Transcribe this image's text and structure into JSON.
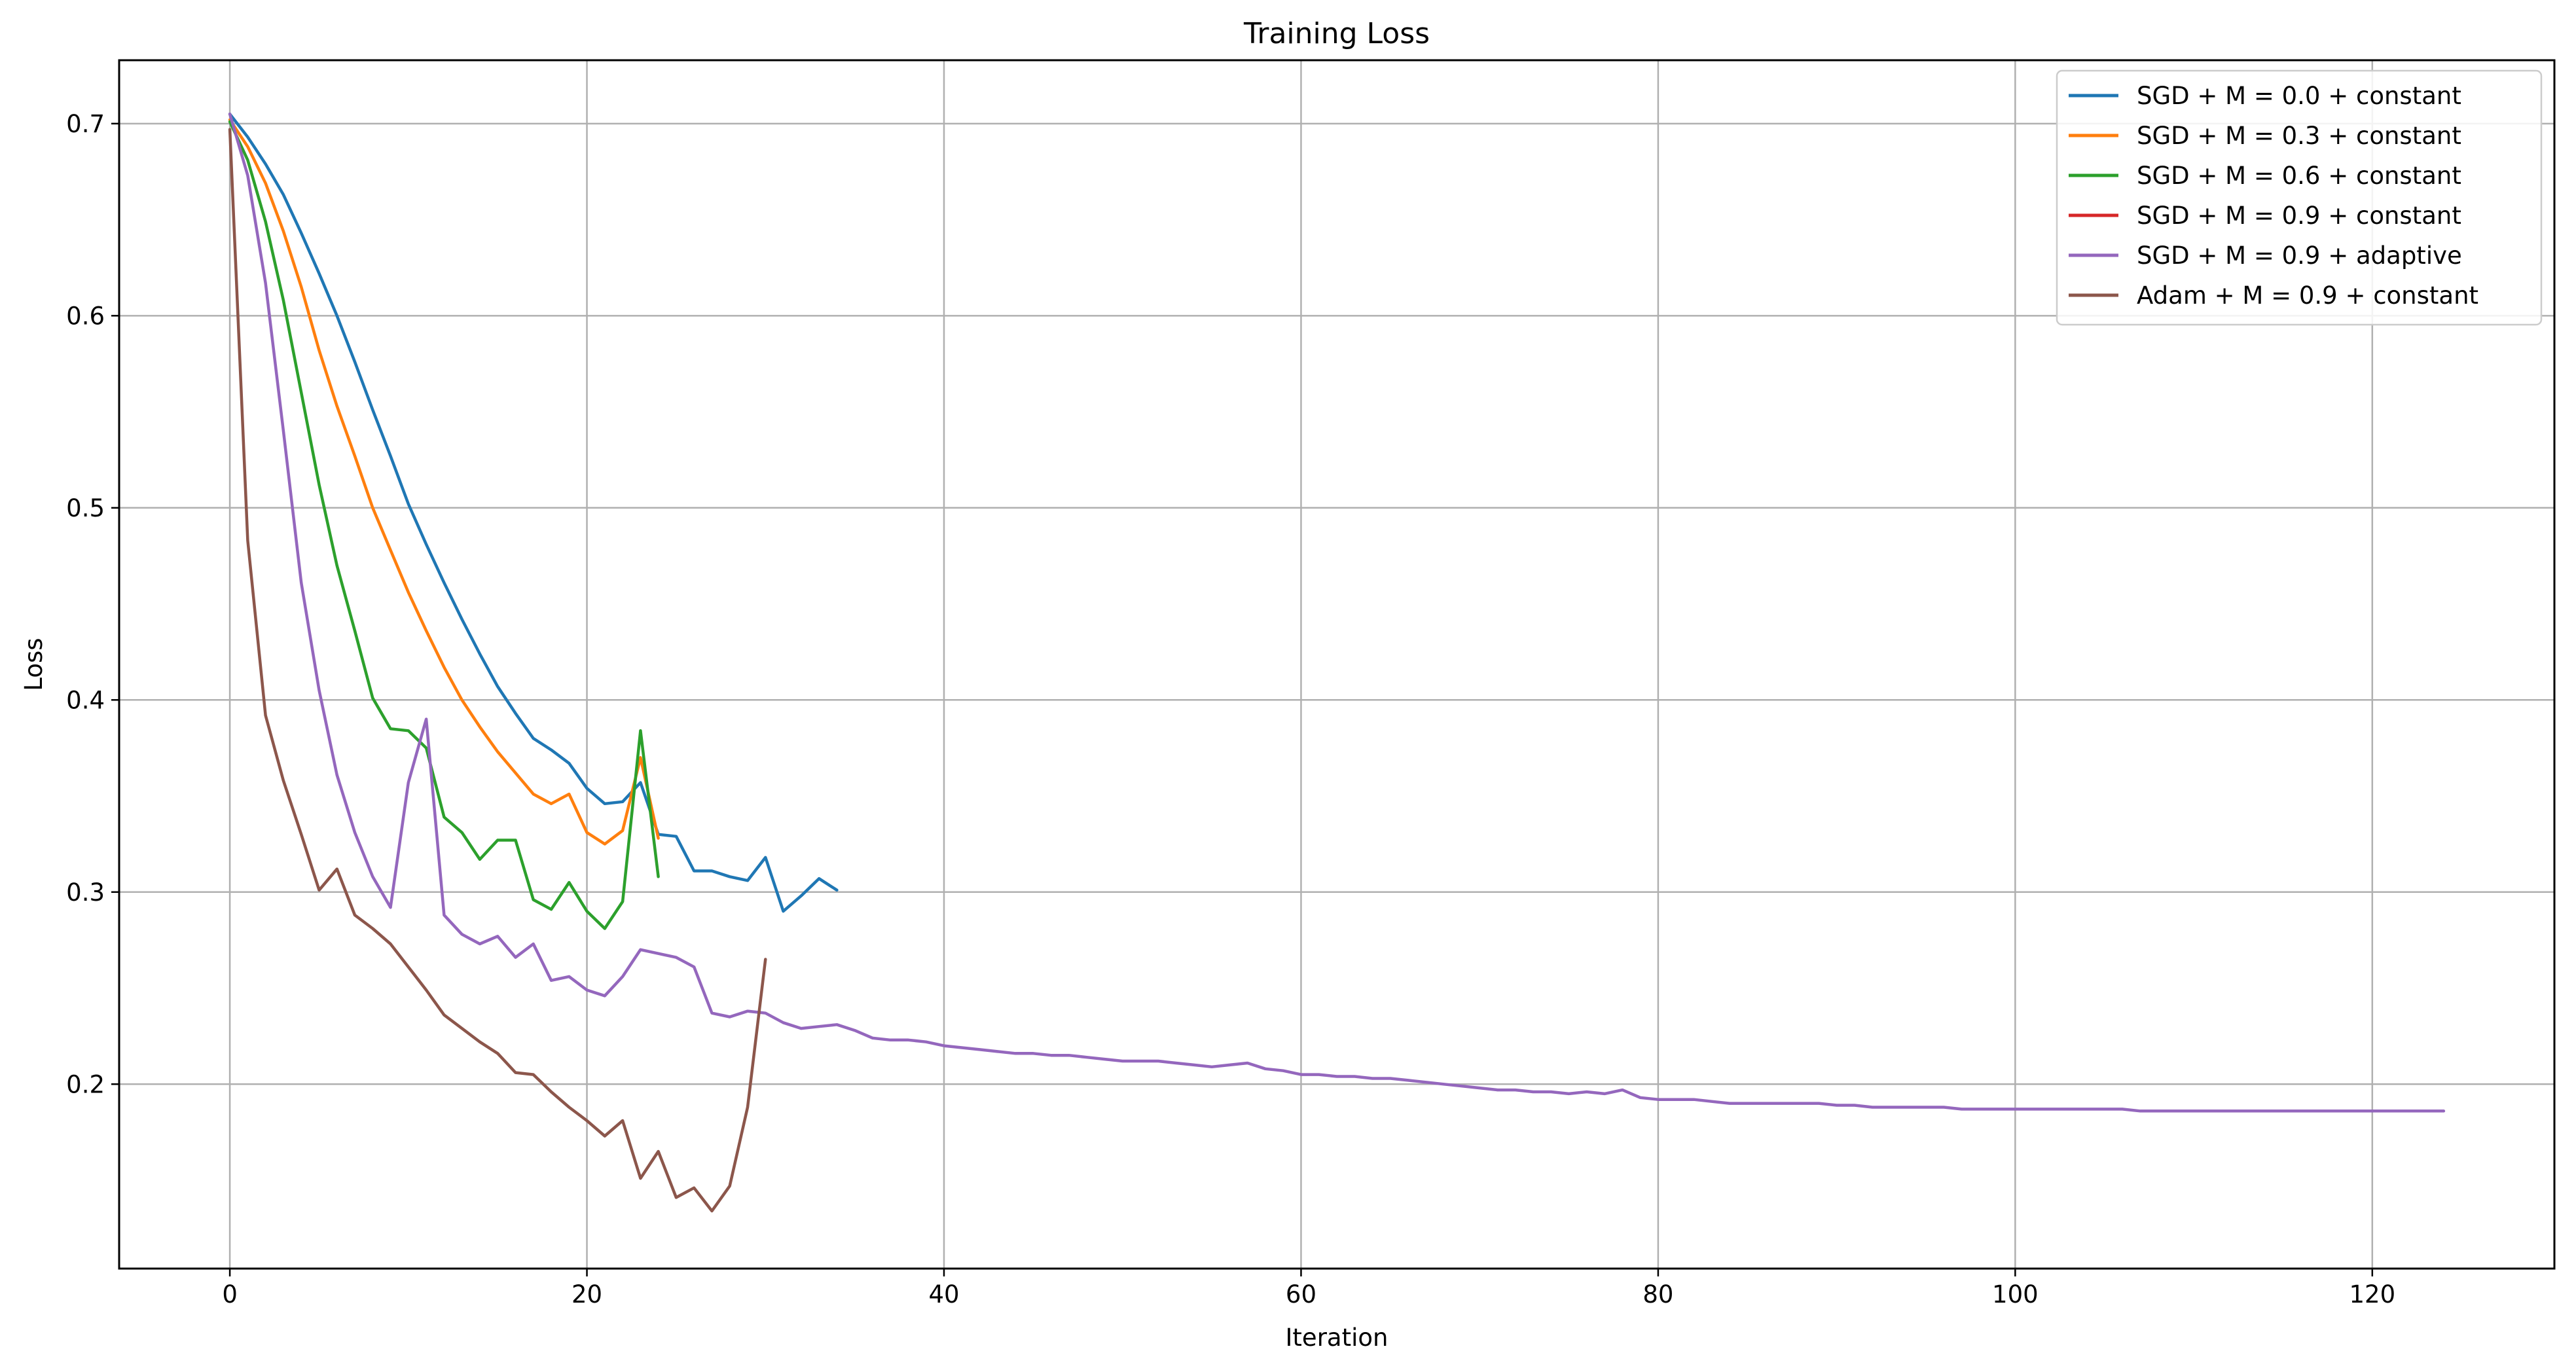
{
  "chart_data": {
    "type": "line",
    "title": "Training Loss",
    "xlabel": "Iteration",
    "ylabel": "Loss",
    "xlim": [
      -6.2,
      130.2
    ],
    "ylim": [
      0.104,
      0.733
    ],
    "xticks": [
      0,
      20,
      40,
      60,
      80,
      100,
      120
    ],
    "yticks": [
      0.2,
      0.3,
      0.4,
      0.5,
      0.6,
      0.7
    ],
    "xtick_labels": [
      "0",
      "20",
      "40",
      "60",
      "80",
      "100",
      "120"
    ],
    "ytick_labels": [
      "0.2",
      "0.3",
      "0.4",
      "0.5",
      "0.6",
      "0.7"
    ],
    "grid": true,
    "legend_position": "top-right",
    "series": [
      {
        "name": "SGD + M = 0.0 + constant",
        "color": "#1f77b4",
        "x": [
          0,
          1,
          2,
          3,
          4,
          5,
          6,
          7,
          8,
          9,
          10,
          11,
          12,
          13,
          14,
          15,
          16,
          17,
          18,
          19,
          20,
          21,
          22,
          23,
          24,
          25,
          26,
          27,
          28,
          29,
          30,
          31,
          32,
          33,
          34
        ],
        "y": [
          0.705,
          0.693,
          0.679,
          0.663,
          0.643,
          0.622,
          0.6,
          0.576,
          0.551,
          0.527,
          0.502,
          0.481,
          0.461,
          0.442,
          0.424,
          0.407,
          0.393,
          0.38,
          0.374,
          0.367,
          0.354,
          0.346,
          0.347,
          0.357,
          0.33,
          0.329,
          0.311,
          0.311,
          0.308,
          0.306,
          0.318,
          0.29,
          0.298,
          0.307,
          0.301
        ]
      },
      {
        "name": "SGD + M = 0.3 + constant",
        "color": "#ff7f0e",
        "x": [
          0,
          1,
          2,
          3,
          4,
          5,
          6,
          7,
          8,
          9,
          10,
          11,
          12,
          13,
          14,
          15,
          16,
          17,
          18,
          19,
          20,
          21,
          22,
          23,
          24
        ],
        "y": [
          0.702,
          0.688,
          0.669,
          0.644,
          0.615,
          0.582,
          0.553,
          0.527,
          0.5,
          0.478,
          0.456,
          0.436,
          0.417,
          0.4,
          0.386,
          0.373,
          0.362,
          0.351,
          0.346,
          0.351,
          0.331,
          0.325,
          0.332,
          0.37,
          0.328
        ]
      },
      {
        "name": "SGD + M = 0.6 + constant",
        "color": "#2ca02c",
        "x": [
          0,
          1,
          2,
          3,
          4,
          5,
          6,
          7,
          8,
          9,
          10,
          11,
          12,
          13,
          14,
          15,
          16,
          17,
          18,
          19,
          20,
          21,
          22,
          23,
          24
        ],
        "y": [
          0.701,
          0.681,
          0.649,
          0.608,
          0.56,
          0.512,
          0.47,
          0.436,
          0.401,
          0.385,
          0.384,
          0.375,
          0.339,
          0.331,
          0.317,
          0.327,
          0.327,
          0.296,
          0.291,
          0.305,
          0.29,
          0.281,
          0.295,
          0.384,
          0.308
        ]
      },
      {
        "name": "SGD + M = 0.9 + constant",
        "color": "#d62728",
        "x": [],
        "y": []
      },
      {
        "name": "SGD + M = 0.9 + adaptive",
        "color": "#9467bd",
        "x": [
          0,
          1,
          2,
          3,
          4,
          5,
          6,
          7,
          8,
          9,
          10,
          11,
          12,
          13,
          14,
          15,
          16,
          17,
          18,
          19,
          20,
          21,
          22,
          23,
          24,
          25,
          26,
          27,
          28,
          29,
          30,
          31,
          32,
          33,
          34,
          35,
          36,
          37,
          38,
          39,
          40,
          41,
          42,
          43,
          44,
          45,
          46,
          47,
          48,
          49,
          50,
          51,
          52,
          53,
          54,
          55,
          56,
          57,
          58,
          59,
          60,
          61,
          62,
          63,
          64,
          65,
          66,
          67,
          68,
          69,
          70,
          71,
          72,
          73,
          74,
          75,
          76,
          77,
          78,
          79,
          80,
          81,
          82,
          83,
          84,
          85,
          86,
          87,
          88,
          89,
          90,
          91,
          92,
          93,
          94,
          95,
          96,
          97,
          98,
          99,
          100,
          101,
          102,
          103,
          104,
          105,
          106,
          107,
          108,
          109,
          110,
          111,
          112,
          113,
          114,
          115,
          116,
          117,
          118,
          119,
          120,
          121,
          122,
          123,
          124
        ],
        "y": [
          0.705,
          0.673,
          0.617,
          0.54,
          0.461,
          0.405,
          0.361,
          0.331,
          0.308,
          0.292,
          0.357,
          0.39,
          0.288,
          0.278,
          0.273,
          0.277,
          0.266,
          0.273,
          0.254,
          0.256,
          0.249,
          0.246,
          0.256,
          0.27,
          0.268,
          0.266,
          0.261,
          0.237,
          0.235,
          0.238,
          0.237,
          0.232,
          0.229,
          0.23,
          0.231,
          0.228,
          0.224,
          0.223,
          0.223,
          0.222,
          0.22,
          0.219,
          0.218,
          0.217,
          0.216,
          0.216,
          0.215,
          0.215,
          0.214,
          0.213,
          0.212,
          0.212,
          0.212,
          0.211,
          0.21,
          0.209,
          0.21,
          0.211,
          0.208,
          0.207,
          0.205,
          0.205,
          0.204,
          0.204,
          0.203,
          0.203,
          0.202,
          0.201,
          0.2,
          0.199,
          0.198,
          0.197,
          0.197,
          0.196,
          0.196,
          0.195,
          0.196,
          0.195,
          0.197,
          0.193,
          0.192,
          0.192,
          0.192,
          0.191,
          0.19,
          0.19,
          0.19,
          0.19,
          0.19,
          0.19,
          0.189,
          0.189,
          0.188,
          0.188,
          0.188,
          0.188,
          0.188,
          0.187,
          0.187,
          0.187,
          0.187,
          0.187,
          0.187,
          0.187,
          0.187,
          0.187,
          0.187,
          0.186,
          0.186,
          0.186,
          0.186,
          0.186,
          0.186,
          0.186,
          0.186,
          0.186,
          0.186,
          0.186,
          0.186,
          0.186,
          0.186,
          0.186,
          0.186,
          0.186,
          0.186
        ]
      },
      {
        "name": "Adam + M = 0.9 + constant",
        "color": "#8c564b",
        "x": [
          0,
          1,
          2,
          3,
          4,
          5,
          6,
          7,
          8,
          9,
          10,
          11,
          12,
          13,
          14,
          15,
          16,
          17,
          18,
          19,
          20,
          21,
          22,
          23,
          24,
          25,
          26,
          27,
          28,
          29,
          30
        ],
        "y": [
          0.697,
          0.483,
          0.392,
          0.358,
          0.33,
          0.301,
          0.312,
          0.288,
          0.281,
          0.273,
          0.261,
          0.249,
          0.236,
          0.229,
          0.222,
          0.216,
          0.206,
          0.205,
          0.196,
          0.188,
          0.181,
          0.173,
          0.181,
          0.151,
          0.165,
          0.141,
          0.146,
          0.134,
          0.147,
          0.188,
          0.265
        ]
      }
    ]
  }
}
